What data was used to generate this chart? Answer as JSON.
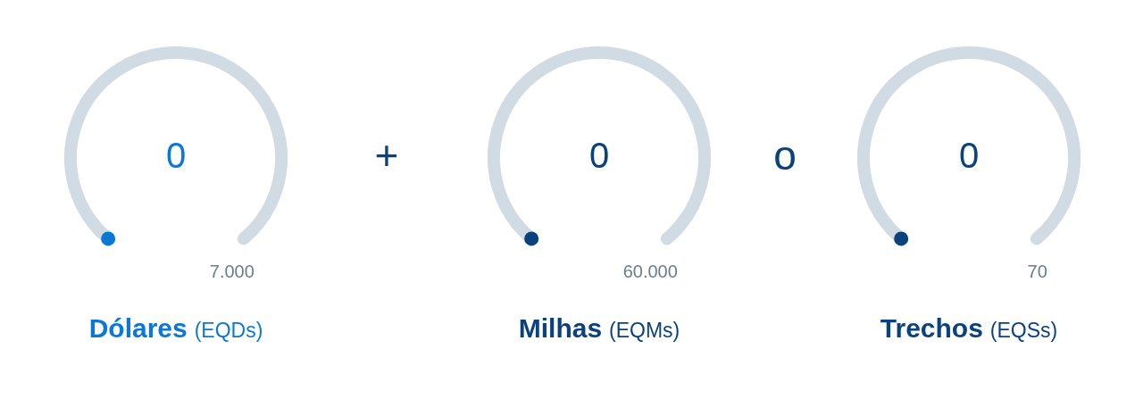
{
  "chart_data": [
    {
      "type": "other",
      "title": "Dólares",
      "subtitle": "(EQDs)",
      "values": [
        0,
        7000
      ],
      "value_labels": [
        "0",
        "7.000"
      ],
      "colors": [
        "#0b78d4",
        "#d1dbe3"
      ],
      "annotations": [
        "+"
      ]
    },
    {
      "type": "other",
      "title": "Milhas",
      "subtitle": "(EQMs)",
      "values": [
        0,
        60000
      ],
      "value_labels": [
        "0",
        "60.000"
      ],
      "colors": [
        "#0b427e",
        "#d1dbe3"
      ],
      "annotations": [
        "o"
      ]
    },
    {
      "type": "other",
      "title": "Trechos",
      "subtitle": "(EQSs)",
      "values": [
        0,
        70
      ],
      "value_labels": [
        "0",
        "70"
      ],
      "colors": [
        "#0b427e",
        "#d1dbe3"
      ]
    }
  ]
}
